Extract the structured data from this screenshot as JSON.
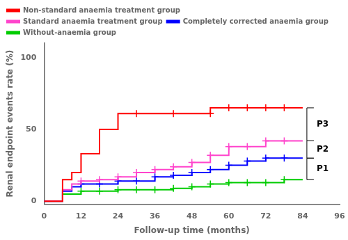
{
  "chart_data": {
    "type": "line",
    "xlabel": "Follow-up time (months)",
    "ylabel": "Renal endpoint events rate (%)",
    "xlim": [
      0,
      96
    ],
    "ylim": [
      -2,
      110
    ],
    "xticks": [
      0,
      12,
      24,
      36,
      48,
      60,
      72,
      84,
      96
    ],
    "yticks": [
      0,
      50,
      100
    ],
    "grid": false,
    "legend": "upper left",
    "marker": "plus",
    "series": [
      {
        "name": "Non-standard anaemia treatment group",
        "color": "#ff0000",
        "x": [
          0,
          6,
          6,
          9,
          9,
          12,
          12,
          18,
          18,
          24,
          24,
          36,
          36,
          48,
          48,
          54,
          54,
          60,
          60,
          66,
          66,
          72,
          72,
          78,
          78,
          84,
          84
        ],
        "values": [
          0,
          0,
          15,
          15,
          20,
          20,
          33,
          33,
          50,
          50,
          61,
          61,
          61,
          61,
          61,
          61,
          65,
          65,
          65,
          65,
          65,
          65,
          65,
          65,
          65,
          65,
          65
        ],
        "censors_x": [
          30,
          42,
          54,
          60,
          66,
          72,
          78
        ],
        "censors_y": [
          61,
          61,
          61,
          65,
          65,
          65,
          65
        ]
      },
      {
        "name": "Standard anaemia treatment group",
        "color": "#ff44cc",
        "x": [
          0,
          6,
          6,
          9,
          9,
          12,
          12,
          18,
          18,
          24,
          24,
          30,
          30,
          36,
          36,
          42,
          42,
          48,
          48,
          54,
          54,
          60,
          60,
          66,
          66,
          72,
          72,
          78,
          78,
          84,
          84
        ],
        "values": [
          0,
          0,
          8,
          8,
          12,
          12,
          14,
          14,
          15,
          15,
          17,
          17,
          20,
          20,
          22,
          22,
          24,
          24,
          27,
          27,
          32,
          32,
          38,
          38,
          38,
          38,
          42,
          42,
          42,
          42,
          42
        ],
        "censors_x": [
          12,
          18,
          24,
          30,
          36,
          42,
          48,
          54,
          60,
          66,
          72,
          78
        ],
        "censors_y": [
          14,
          15,
          17,
          20,
          22,
          24,
          27,
          32,
          38,
          38,
          42,
          42
        ]
      },
      {
        "name": "Completely corrected anaemia group",
        "color": "#0000ff",
        "x": [
          0,
          6,
          6,
          9,
          9,
          12,
          12,
          18,
          18,
          24,
          24,
          30,
          30,
          36,
          36,
          42,
          42,
          48,
          48,
          54,
          54,
          60,
          60,
          66,
          66,
          72,
          72,
          78,
          78,
          84,
          84
        ],
        "values": [
          0,
          0,
          7,
          7,
          10,
          10,
          12,
          12,
          12,
          12,
          14,
          14,
          14,
          14,
          17,
          17,
          18,
          18,
          20,
          20,
          22,
          22,
          25,
          25,
          28,
          28,
          30,
          30,
          30,
          30,
          30
        ],
        "censors_x": [
          12,
          18,
          24,
          30,
          36,
          42,
          48,
          54,
          60,
          66,
          72,
          78
        ],
        "censors_y": [
          12,
          12,
          14,
          14,
          17,
          18,
          20,
          22,
          25,
          28,
          30,
          30
        ]
      },
      {
        "name": "Without-anaemia group",
        "color": "#00cc00",
        "x": [
          0,
          6,
          6,
          12,
          12,
          18,
          18,
          24,
          24,
          30,
          30,
          36,
          36,
          42,
          42,
          48,
          48,
          54,
          54,
          60,
          60,
          66,
          66,
          72,
          72,
          78,
          78,
          84,
          84
        ],
        "values": [
          0,
          0,
          5,
          5,
          7,
          7,
          7,
          7,
          8,
          8,
          8,
          8,
          8,
          8,
          9,
          9,
          10,
          10,
          12,
          12,
          13,
          13,
          13,
          13,
          13,
          13,
          15,
          15,
          15
        ],
        "censors_x": [
          12,
          18,
          24,
          30,
          36,
          42,
          48,
          54,
          60,
          66,
          72,
          78
        ],
        "censors_y": [
          7,
          7,
          8,
          8,
          8,
          9,
          10,
          12,
          13,
          13,
          13,
          15
        ]
      }
    ],
    "brackets": [
      {
        "y_top": 65,
        "y_bot": 42,
        "label": "P3"
      },
      {
        "y_top": 42,
        "y_bot": 30,
        "label": "P2"
      },
      {
        "y_top": 30,
        "y_bot": 15,
        "label": "P1"
      }
    ]
  }
}
